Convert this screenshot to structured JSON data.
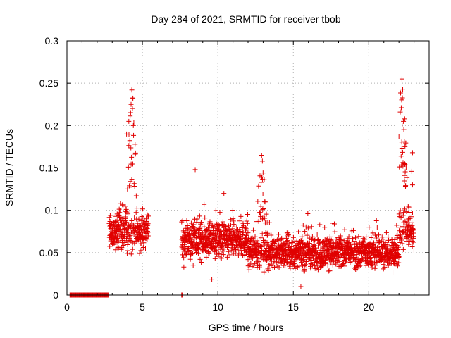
{
  "chart_data": {
    "type": "scatter",
    "title": "Day 284 of 2021, SRMTID for receiver tbob",
    "xlabel": "GPS time / hours",
    "ylabel": "SRMTID / TECUs",
    "xlim": [
      0,
      24
    ],
    "ylim": [
      0,
      0.3
    ],
    "xticks": [
      0,
      5,
      10,
      15,
      20
    ],
    "xtick_labels": [
      "0",
      "5",
      "10",
      "15",
      "20"
    ],
    "yticks": [
      0,
      0.05,
      0.1,
      0.15,
      0.2,
      0.25,
      0.3
    ],
    "ytick_labels": [
      "0",
      "0.05",
      "0.1",
      "0.15",
      "0.2",
      "0.25",
      "0.3"
    ],
    "grid": true,
    "marker": "+",
    "marker_color": "#e00000",
    "series": [
      {
        "name": "SRMTID",
        "segments": [
          {
            "t_start": 0.2,
            "t_end": 2.8,
            "baseline": 0.0,
            "spread": 0.0
          },
          {
            "t_start": 2.8,
            "t_end": 5.4,
            "baseline": 0.075,
            "spread": 0.02,
            "peak_t": 4.3,
            "peak_value": 0.242
          },
          {
            "t_start": 7.6,
            "t_end": 7.7,
            "baseline": 0.0,
            "spread": 0.0
          },
          {
            "t_start": 7.6,
            "t_end": 12.0,
            "baseline": 0.065,
            "spread": 0.02
          },
          {
            "t_start": 12.0,
            "t_end": 22.0,
            "baseline": 0.05,
            "spread": 0.018,
            "peak_t": 12.9,
            "peak_value": 0.165
          },
          {
            "t_start": 22.0,
            "t_end": 23.0,
            "baseline": 0.075,
            "spread": 0.02,
            "peak_t": 22.2,
            "peak_value": 0.255
          }
        ],
        "highlights": [
          {
            "x": 4.3,
            "y": 0.242
          },
          {
            "x": 4.25,
            "y": 0.225
          },
          {
            "x": 4.1,
            "y": 0.205
          },
          {
            "x": 3.95,
            "y": 0.19
          },
          {
            "x": 4.4,
            "y": 0.2
          },
          {
            "x": 8.5,
            "y": 0.148
          },
          {
            "x": 12.9,
            "y": 0.165
          },
          {
            "x": 12.95,
            "y": 0.158
          },
          {
            "x": 10.4,
            "y": 0.12
          },
          {
            "x": 22.2,
            "y": 0.255
          },
          {
            "x": 22.25,
            "y": 0.243
          },
          {
            "x": 22.3,
            "y": 0.205
          },
          {
            "x": 22.4,
            "y": 0.175
          },
          {
            "x": 22.9,
            "y": 0.168
          },
          {
            "x": 22.85,
            "y": 0.146
          },
          {
            "x": 22.9,
            "y": 0.13
          },
          {
            "x": 9.6,
            "y": 0.018
          },
          {
            "x": 15.5,
            "y": 0.01
          }
        ]
      }
    ]
  }
}
